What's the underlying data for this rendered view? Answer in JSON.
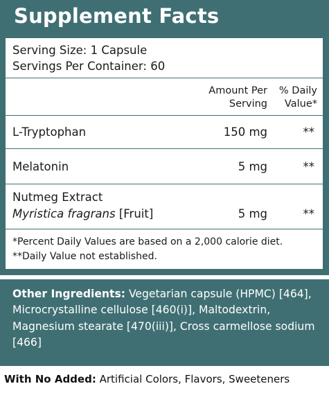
{
  "title": "Supplement Facts",
  "serving_size": "Serving Size: 1 Capsule",
  "servings_per_container": "Servings Per Container: 60",
  "headers": {
    "amount_line1": "Amount Per",
    "amount_line2": "Serving",
    "dv_line1": "% Daily",
    "dv_line2": "Value*"
  },
  "rows": [
    {
      "name": "L-Tryptophan",
      "amount": "150 mg",
      "dv": "**"
    },
    {
      "name": "Melatonin",
      "amount": "5 mg",
      "dv": "**"
    },
    {
      "name": "Nutmeg Extract",
      "latin": "Myristica fragrans",
      "part": "[Fruit]",
      "amount": "5 mg",
      "dv": "**"
    }
  ],
  "footnotes": [
    "*Percent Daily Values are based on a 2,000 calorie diet.",
    "**Daily Value not established."
  ],
  "other_ingredients": {
    "label": "Other Ingredients:",
    "text": "Vegetarian capsule (HPMC) [464], Microcrystalline cellulose [460(i)], Maltodextrin, Magnesium stearate [470(iii)], Cross carmellose sodium [466]"
  },
  "no_added": {
    "label": "With No Added:",
    "text": "Artificial Colors, Flavors, Sweeteners"
  },
  "colors": {
    "panel": "#3f6f73",
    "text": "#1a1a1a"
  }
}
